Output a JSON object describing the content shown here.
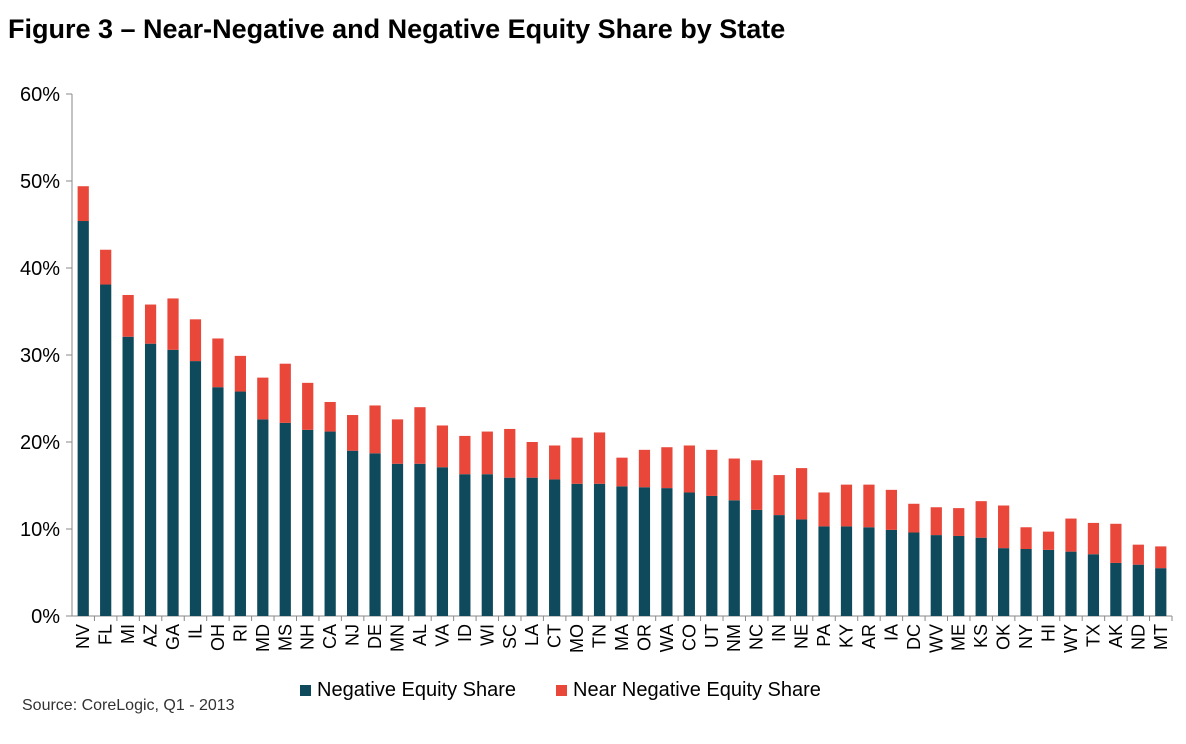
{
  "title": "Figure 3 – Near-Negative and Negative Equity Share by State",
  "source": "Source: CoreLogic, Q1 - 2013",
  "colors": {
    "negative": "#0f4a5c",
    "near_negative": "#e8473a",
    "axis": "#888888"
  },
  "chart_data": {
    "type": "bar",
    "stacked": true,
    "title": "Figure 3 – Near-Negative and Negative Equity Share by State",
    "xlabel": "",
    "ylabel": "",
    "ylim": [
      0,
      60
    ],
    "yticks": [
      "0%",
      "10%",
      "20%",
      "30%",
      "40%",
      "50%",
      "60%"
    ],
    "ytick_values": [
      0,
      10,
      20,
      30,
      40,
      50,
      60
    ],
    "grid": false,
    "legend_position": "bottom",
    "categories": [
      "NV",
      "FL",
      "MI",
      "AZ",
      "GA",
      "IL",
      "OH",
      "RI",
      "MD",
      "MS",
      "NH",
      "CA",
      "NJ",
      "DE",
      "MN",
      "AL",
      "VA",
      "ID",
      "WI",
      "SC",
      "LA",
      "CT",
      "MO",
      "TN",
      "MA",
      "OR",
      "WA",
      "CO",
      "UT",
      "NM",
      "NC",
      "IN",
      "NE",
      "PA",
      "KY",
      "AR",
      "IA",
      "DC",
      "WV",
      "ME",
      "KS",
      "OK",
      "NY",
      "HI",
      "WY",
      "TX",
      "AK",
      "ND",
      "MT"
    ],
    "series": [
      {
        "name": "Negative Equity Share",
        "values": [
          45.4,
          38.1,
          32.1,
          31.3,
          30.6,
          29.3,
          26.3,
          25.8,
          22.6,
          22.2,
          21.4,
          21.2,
          19.0,
          18.7,
          17.5,
          17.5,
          17.1,
          16.3,
          16.3,
          15.9,
          15.9,
          15.7,
          15.2,
          15.2,
          14.9,
          14.8,
          14.7,
          14.2,
          13.8,
          13.3,
          12.2,
          11.6,
          11.1,
          10.3,
          10.3,
          10.2,
          9.9,
          9.6,
          9.3,
          9.2,
          9.0,
          7.8,
          7.7,
          7.6,
          7.4,
          7.1,
          6.1,
          5.9,
          5.5
        ]
      },
      {
        "name": "Near Negative Equity Share",
        "values": [
          4.0,
          4.0,
          4.8,
          4.5,
          5.9,
          4.8,
          5.6,
          4.1,
          4.8,
          6.8,
          5.4,
          3.4,
          4.1,
          5.5,
          5.1,
          6.5,
          4.8,
          4.4,
          4.9,
          5.6,
          4.1,
          3.9,
          5.3,
          5.9,
          3.3,
          4.3,
          4.7,
          5.4,
          5.3,
          4.8,
          5.7,
          4.6,
          5.9,
          3.9,
          4.8,
          4.9,
          4.6,
          3.3,
          3.2,
          3.2,
          4.2,
          4.9,
          2.5,
          2.1,
          3.8,
          3.6,
          4.5,
          2.3,
          2.5
        ]
      }
    ]
  }
}
